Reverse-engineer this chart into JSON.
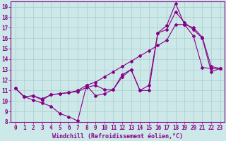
{
  "xlabel": "Windchill (Refroidissement éolien,°C)",
  "bg_color": "#cce8e8",
  "line_color": "#880088",
  "grid_color": "#aacccc",
  "spine_color": "#880088",
  "xlim": [
    -0.5,
    23.5
  ],
  "ylim": [
    8,
    19.5
  ],
  "xticks": [
    0,
    1,
    2,
    3,
    4,
    5,
    6,
    7,
    8,
    9,
    10,
    11,
    12,
    13,
    14,
    15,
    16,
    17,
    18,
    19,
    20,
    21,
    22,
    23
  ],
  "yticks": [
    8,
    9,
    10,
    11,
    12,
    13,
    14,
    15,
    16,
    17,
    18,
    19
  ],
  "line1_x": [
    0,
    1,
    2,
    3,
    4,
    5,
    6,
    7,
    8,
    9,
    10,
    11,
    12,
    13,
    14,
    15,
    16,
    17,
    18,
    19,
    20,
    21,
    22,
    23
  ],
  "line1_y": [
    11.2,
    10.4,
    10.1,
    9.8,
    9.5,
    8.8,
    8.5,
    8.1,
    11.5,
    10.5,
    10.7,
    11.1,
    12.5,
    13.0,
    11.0,
    11.0,
    16.5,
    17.2,
    19.3,
    17.3,
    17.0,
    16.1,
    13.3,
    13.1
  ],
  "line2_x": [
    0,
    1,
    2,
    3,
    4,
    5,
    6,
    7,
    8,
    9,
    10,
    11,
    12,
    13,
    14,
    15,
    16,
    17,
    18,
    19,
    20,
    21,
    22,
    23
  ],
  "line2_y": [
    11.2,
    10.4,
    10.5,
    10.2,
    10.6,
    10.7,
    10.8,
    11.0,
    11.5,
    11.8,
    12.3,
    12.8,
    13.3,
    13.8,
    14.3,
    14.8,
    15.3,
    15.8,
    17.3,
    17.3,
    16.2,
    13.2,
    13.1,
    13.1
  ],
  "line3_x": [
    0,
    1,
    2,
    3,
    4,
    5,
    6,
    7,
    8,
    9,
    10,
    11,
    12,
    13,
    14,
    15,
    16,
    17,
    18,
    19,
    20,
    21,
    22,
    23
  ],
  "line3_y": [
    11.2,
    10.4,
    10.5,
    10.1,
    10.6,
    10.7,
    10.8,
    10.9,
    11.3,
    11.5,
    11.1,
    11.1,
    12.3,
    13.0,
    11.0,
    11.5,
    16.5,
    16.8,
    18.5,
    17.5,
    16.8,
    16.0,
    12.8,
    13.1
  ],
  "tick_fontsize": 5.5,
  "xlabel_fontsize": 6.0,
  "lw": 0.8,
  "ms": 2.0
}
